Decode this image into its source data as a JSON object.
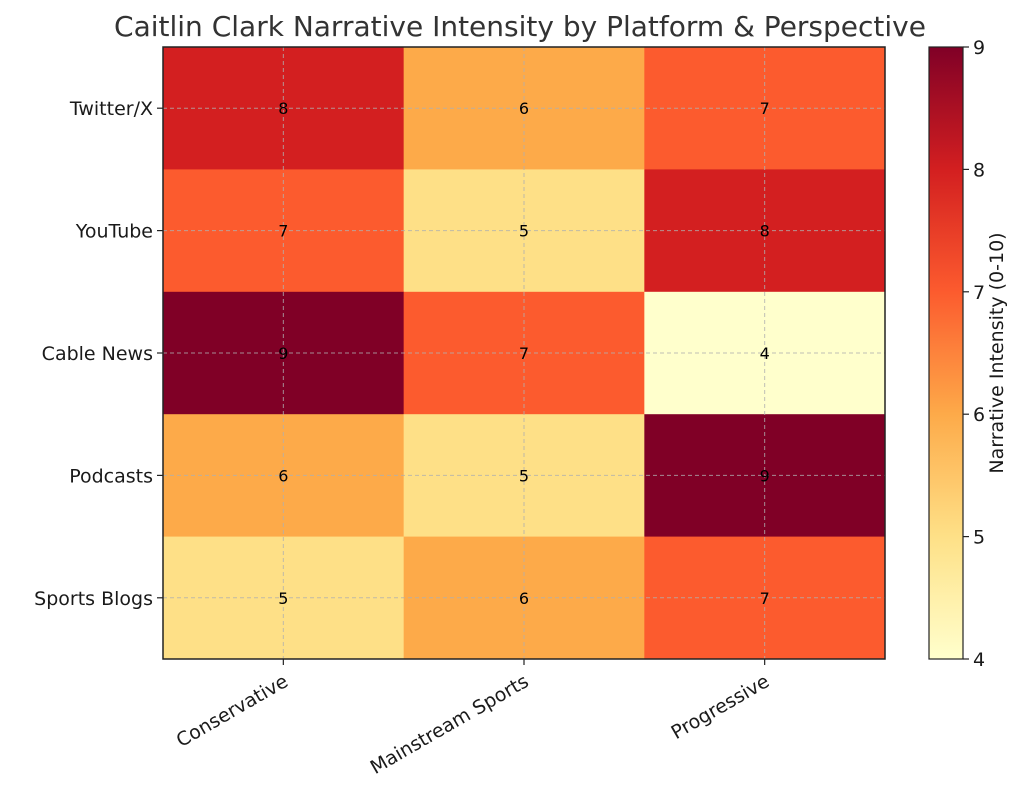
{
  "chart_data": {
    "type": "heatmap",
    "title": "Caitlin Clark Narrative Intensity by Platform & Perspective",
    "rows": [
      "Twitter/X",
      "YouTube",
      "Cable News",
      "Podcasts",
      "Sports Blogs"
    ],
    "columns": [
      "Conservative",
      "Mainstream Sports",
      "Progressive"
    ],
    "values": [
      [
        8,
        6,
        7
      ],
      [
        7,
        5,
        8
      ],
      [
        9,
        7,
        4
      ],
      [
        6,
        5,
        9
      ],
      [
        5,
        6,
        7
      ]
    ],
    "colorbar": {
      "label": "Narrative Intensity (0-10)",
      "range": [
        4,
        9
      ],
      "ticks": [
        4,
        5,
        6,
        7,
        8,
        9
      ],
      "colormap": "YlOrRd"
    },
    "grid": true,
    "colors": {
      "4": "#ffffcc",
      "5": "#fee087",
      "6": "#fdaa49",
      "7": "#fc5b2e",
      "8": "#d31f20",
      "9": "#800026"
    }
  }
}
